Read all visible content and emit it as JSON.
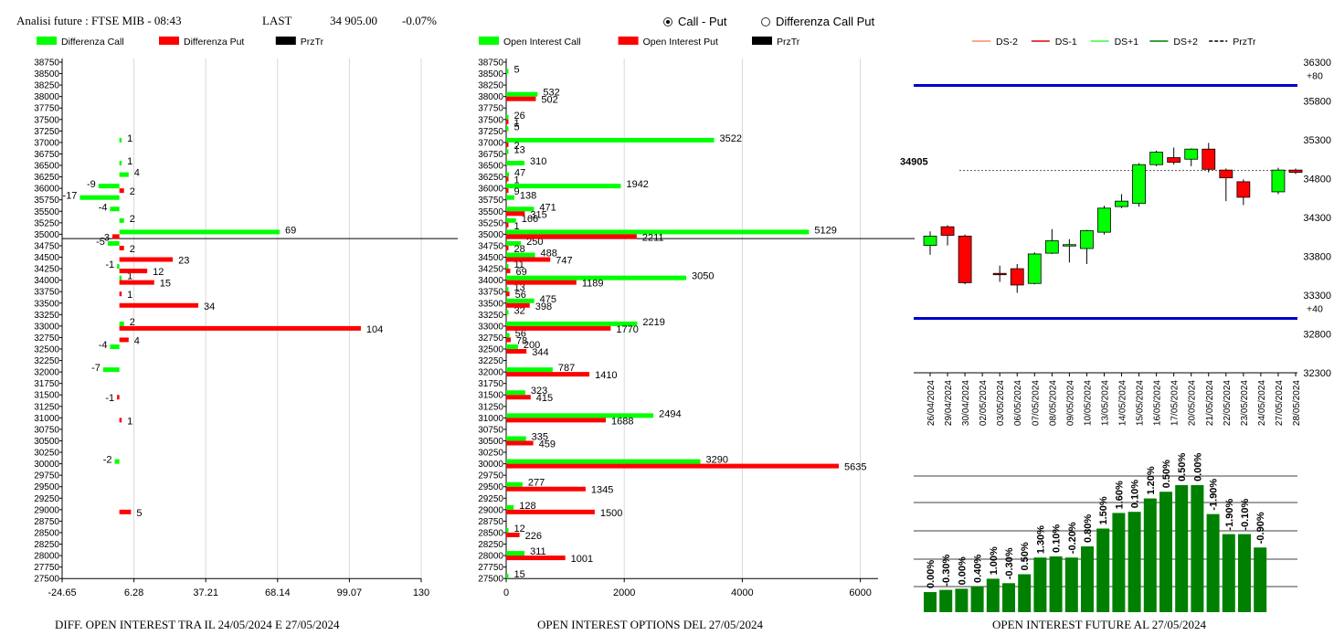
{
  "header": {
    "title": "Analisi future : FTSE MIB - 08:43",
    "last_label": "LAST",
    "last_value": "34 905.00",
    "change": "-0.07%"
  },
  "radio": {
    "option1": "Call - Put",
    "option1_selected": true,
    "option2": "Differenza Call Put",
    "option2_selected": false
  },
  "colors": {
    "call": "#00ff00",
    "put": "#ff0000",
    "line": "#0000cc",
    "candle_up": "#00ff00",
    "candle_down": "#ff0000",
    "bar_green": "#008000"
  },
  "footers": {
    "left": "DIFF. OPEN INTEREST TRA IL 24/05/2024 E 27/05/2024",
    "middle": "OPEN INTEREST OPTIONS DEL 27/05/2024",
    "right": "OPEN INTEREST FUTURE AL 27/05/2024"
  },
  "chart_data": [
    {
      "type": "bar",
      "orientation": "horizontal",
      "legend": [
        "Differenza Call",
        "Differenza Put",
        "PrzTr"
      ],
      "xticks": [
        "-24.65",
        "6.28",
        "37.21",
        "68.14",
        "99.07",
        "130"
      ],
      "xlim": [
        -24.65,
        130
      ],
      "strikes": [
        38750,
        38500,
        38250,
        38000,
        37750,
        37500,
        37250,
        37000,
        36750,
        36500,
        36250,
        36000,
        35750,
        35500,
        35250,
        35000,
        34750,
        34500,
        34250,
        34000,
        33750,
        33500,
        33250,
        33000,
        32750,
        32500,
        32250,
        32000,
        31750,
        31500,
        31250,
        31000,
        30750,
        30500,
        30250,
        30000,
        29750,
        29500,
        29250,
        29000,
        28750,
        28500,
        28250,
        28000,
        27750,
        27500
      ],
      "price_line": 34905,
      "series": [
        {
          "name": "Differenza Call",
          "values": [
            {
              "strike": 37000,
              "value": 1
            },
            {
              "strike": 36500,
              "value": 1
            },
            {
              "strike": 36250,
              "value": 4
            },
            {
              "strike": 36000,
              "value": -9
            },
            {
              "strike": 35750,
              "value": -17
            },
            {
              "strike": 35500,
              "value": -4
            },
            {
              "strike": 35250,
              "value": 2
            },
            {
              "strike": 35000,
              "value": 69
            },
            {
              "strike": 34750,
              "value": -5
            },
            {
              "strike": 34250,
              "value": -1
            },
            {
              "strike": 34000,
              "value": 1
            },
            {
              "strike": 33000,
              "value": 2
            },
            {
              "strike": 32500,
              "value": -4
            },
            {
              "strike": 32000,
              "value": -7
            },
            {
              "strike": 30000,
              "value": -2
            }
          ]
        },
        {
          "name": "Differenza Put",
          "values": [
            {
              "strike": 36000,
              "value": 2
            },
            {
              "strike": 35000,
              "value": -3
            },
            {
              "strike": 34750,
              "value": 2
            },
            {
              "strike": 34500,
              "value": 23
            },
            {
              "strike": 34250,
              "value": 12
            },
            {
              "strike": 34000,
              "value": 15
            },
            {
              "strike": 33750,
              "value": 1
            },
            {
              "strike": 33500,
              "value": 34
            },
            {
              "strike": 33000,
              "value": 104
            },
            {
              "strike": 32750,
              "value": 4
            },
            {
              "strike": 31500,
              "value": -1
            },
            {
              "strike": 31000,
              "value": 1
            },
            {
              "strike": 29000,
              "value": 5
            }
          ]
        }
      ]
    },
    {
      "type": "bar",
      "orientation": "horizontal",
      "legend": [
        "Open Interest Call",
        "Open Interest Put",
        "PrzTr"
      ],
      "xticks": [
        "0",
        "2000",
        "4000",
        "6000"
      ],
      "xlim": [
        0,
        6300
      ],
      "price_line": 34905,
      "series": [
        {
          "name": "Open Interest Call",
          "values": [
            {
              "strike": 38500,
              "value": 5
            },
            {
              "strike": 38000,
              "value": 532
            },
            {
              "strike": 37500,
              "value": 26
            },
            {
              "strike": 37250,
              "value": 5
            },
            {
              "strike": 37000,
              "value": 3522
            },
            {
              "strike": 36750,
              "value": 13
            },
            {
              "strike": 36500,
              "value": 310
            },
            {
              "strike": 36250,
              "value": 47
            },
            {
              "strike": 36000,
              "value": 1942
            },
            {
              "strike": 35750,
              "value": 138
            },
            {
              "strike": 35500,
              "value": 471
            },
            {
              "strike": 35250,
              "value": 166
            },
            {
              "strike": 35000,
              "value": 5129
            },
            {
              "strike": 34750,
              "value": 250
            },
            {
              "strike": 34500,
              "value": 488
            },
            {
              "strike": 34250,
              "value": 11
            },
            {
              "strike": 34000,
              "value": 3050
            },
            {
              "strike": 33750,
              "value": 13
            },
            {
              "strike": 33500,
              "value": 475
            },
            {
              "strike": 33250,
              "value": 32
            },
            {
              "strike": 33000,
              "value": 2219
            },
            {
              "strike": 32750,
              "value": 56
            },
            {
              "strike": 32500,
              "value": 200
            },
            {
              "strike": 32000,
              "value": 787
            },
            {
              "strike": 31500,
              "value": 323
            },
            {
              "strike": 31000,
              "value": 2494
            },
            {
              "strike": 30500,
              "value": 335
            },
            {
              "strike": 30000,
              "value": 3290
            },
            {
              "strike": 29500,
              "value": 277
            },
            {
              "strike": 29000,
              "value": 128
            },
            {
              "strike": 28500,
              "value": 12
            },
            {
              "strike": 28000,
              "value": 311
            },
            {
              "strike": 27500,
              "value": 15
            }
          ]
        },
        {
          "name": "Open Interest Put",
          "values": [
            {
              "strike": 38000,
              "value": 502
            },
            {
              "strike": 37500,
              "value": 1
            },
            {
              "strike": 37000,
              "value": 2
            },
            {
              "strike": 36250,
              "value": 1
            },
            {
              "strike": 36000,
              "value": 9
            },
            {
              "strike": 35500,
              "value": 315
            },
            {
              "strike": 35250,
              "value": 1
            },
            {
              "strike": 35000,
              "value": 2211
            },
            {
              "strike": 34750,
              "value": 28
            },
            {
              "strike": 34500,
              "value": 747
            },
            {
              "strike": 34250,
              "value": 69
            },
            {
              "strike": 34000,
              "value": 1189
            },
            {
              "strike": 33750,
              "value": 56
            },
            {
              "strike": 33500,
              "value": 398
            },
            {
              "strike": 33000,
              "value": 1770
            },
            {
              "strike": 32750,
              "value": 78
            },
            {
              "strike": 32500,
              "value": 344
            },
            {
              "strike": 32000,
              "value": 1410
            },
            {
              "strike": 31500,
              "value": 415
            },
            {
              "strike": 31000,
              "value": 1688
            },
            {
              "strike": 30500,
              "value": 459
            },
            {
              "strike": 30000,
              "value": 5635
            },
            {
              "strike": 29500,
              "value": 1345
            },
            {
              "strike": 29000,
              "value": 1500
            },
            {
              "strike": 28500,
              "value": 226
            },
            {
              "strike": 28000,
              "value": 1001
            }
          ]
        }
      ]
    },
    {
      "type": "candlestick",
      "legend": [
        "DS-2",
        "DS-1",
        "DS+1",
        "DS+2",
        "PrzTr"
      ],
      "yticks": [
        "36300",
        "35800",
        "35300",
        "34800",
        "34300",
        "33800",
        "33300",
        "32800",
        "32300"
      ],
      "ylim": [
        32300,
        36300
      ],
      "last_label": "34905",
      "last_value": 34905,
      "hlines": [
        {
          "label": "+80",
          "value": 36000
        },
        {
          "label": "+40",
          "value": 33000
        }
      ],
      "dates": [
        "26/04/2024",
        "29/04/2024",
        "30/04/2024",
        "02/05/2024",
        "03/05/2024",
        "06/05/2024",
        "07/05/2024",
        "08/05/2024",
        "09/05/2024",
        "10/05/2024",
        "13/05/2024",
        "14/05/2024",
        "15/05/2024",
        "16/05/2024",
        "17/05/2024",
        "20/05/2024",
        "21/05/2024",
        "22/05/2024",
        "23/05/2024",
        "24/05/2024",
        "27/05/2024",
        "28/05/2024"
      ],
      "candles": [
        {
          "date": "26/04/2024",
          "open": 33940,
          "close": 34060,
          "high": 34120,
          "low": 33820
        },
        {
          "date": "29/04/2024",
          "open": 34180,
          "close": 34070,
          "high": 34200,
          "low": 33940
        },
        {
          "date": "30/04/2024",
          "open": 34060,
          "close": 33460,
          "high": 34080,
          "low": 33440
        },
        {
          "date": "02/05/2024",
          "open": null,
          "close": null,
          "high": null,
          "low": null
        },
        {
          "date": "03/05/2024",
          "open": 33580,
          "close": 33570,
          "high": 33680,
          "low": 33470
        },
        {
          "date": "06/05/2024",
          "open": 33640,
          "close": 33430,
          "high": 33700,
          "low": 33330
        },
        {
          "date": "07/05/2024",
          "open": 33450,
          "close": 33830,
          "high": 33850,
          "low": 33440
        },
        {
          "date": "08/05/2024",
          "open": 33840,
          "close": 34000,
          "high": 34150,
          "low": 33830
        },
        {
          "date": "09/05/2024",
          "open": 33940,
          "close": 33950,
          "high": 34020,
          "low": 33720
        },
        {
          "date": "10/05/2024",
          "open": 33900,
          "close": 34130,
          "high": 34140,
          "low": 33700
        },
        {
          "date": "13/05/2024",
          "open": 34110,
          "close": 34420,
          "high": 34450,
          "low": 34080
        },
        {
          "date": "14/05/2024",
          "open": 34440,
          "close": 34510,
          "high": 34600,
          "low": 34420
        },
        {
          "date": "15/05/2024",
          "open": 34480,
          "close": 34980,
          "high": 35000,
          "low": 34440
        },
        {
          "date": "16/05/2024",
          "open": 34980,
          "close": 35140,
          "high": 35160,
          "low": 34960
        },
        {
          "date": "17/05/2024",
          "open": 35070,
          "close": 35010,
          "high": 35200,
          "low": 34980
        },
        {
          "date": "20/05/2024",
          "open": 35050,
          "close": 35180,
          "high": 35190,
          "low": 34960
        },
        {
          "date": "21/05/2024",
          "open": 35180,
          "close": 34920,
          "high": 35260,
          "low": 34880
        },
        {
          "date": "22/05/2024",
          "open": 34910,
          "close": 34810,
          "high": 34930,
          "low": 34510
        },
        {
          "date": "23/05/2024",
          "open": 34760,
          "close": 34560,
          "high": 34790,
          "low": 34460
        },
        {
          "date": "24/05/2024",
          "open": null,
          "close": null,
          "high": null,
          "low": null
        },
        {
          "date": "27/05/2024",
          "open": 34630,
          "close": 34910,
          "high": 34940,
          "low": 34600
        },
        {
          "date": "28/05/2024",
          "open": 34910,
          "close": 34880,
          "high": 34930,
          "low": 34860
        }
      ]
    },
    {
      "type": "bar",
      "orientation": "vertical",
      "labels": [
        "0.00%",
        "-0.30%",
        "0.00%",
        "0.40%",
        "1.00%",
        "-0.30%",
        "0.50%",
        "1.30%",
        "0.10%",
        "-0.20%",
        "0.80%",
        "1.50%",
        "1.60%",
        "0.10%",
        "1.20%",
        "0.50%",
        "0.50%",
        "0.00%",
        "-1.90%",
        "-1.90%",
        "-0.10%",
        "-0.90%"
      ],
      "values": [
        18,
        20,
        21,
        23,
        30,
        26,
        34,
        49,
        50,
        49,
        59,
        75,
        89,
        90,
        102,
        108,
        114,
        114,
        88,
        70,
        70,
        58
      ]
    }
  ]
}
